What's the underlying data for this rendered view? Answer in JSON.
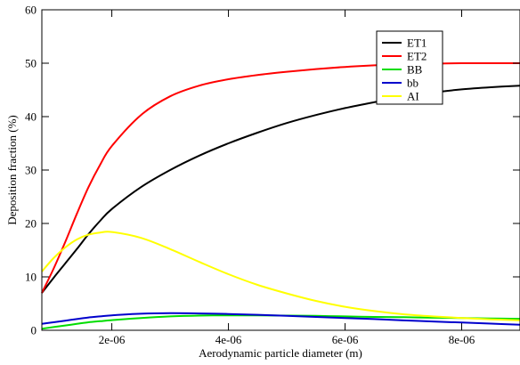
{
  "chart_data": {
    "type": "line",
    "title": "",
    "xlabel": "Aerodynamic particle diameter (m)",
    "ylabel": "Deposition fraction (%)",
    "xlim": [
      8e-07,
      9e-06
    ],
    "ylim": [
      0,
      60
    ],
    "xticks": [
      {
        "value": 2e-06,
        "label": "2e-06"
      },
      {
        "value": 4e-06,
        "label": "4e-06"
      },
      {
        "value": 6e-06,
        "label": "6e-06"
      },
      {
        "value": 8e-06,
        "label": "8e-06"
      }
    ],
    "yticks": [
      {
        "value": 0,
        "label": "0"
      },
      {
        "value": 10,
        "label": "10"
      },
      {
        "value": 20,
        "label": "20"
      },
      {
        "value": 30,
        "label": "30"
      },
      {
        "value": 40,
        "label": "40"
      },
      {
        "value": 50,
        "label": "50"
      },
      {
        "value": 60,
        "label": "60"
      }
    ],
    "grid": false,
    "legend_position": "top-right",
    "x": [
      8e-07,
      1e-06,
      1.2e-06,
      1.4e-06,
      1.6e-06,
      1.8e-06,
      2e-06,
      2.5e-06,
      3e-06,
      3.5e-06,
      4e-06,
      4.5e-06,
      5e-06,
      5.5e-06,
      6e-06,
      6.5e-06,
      7e-06,
      7.5e-06,
      8e-06,
      8.5e-06,
      9e-06
    ],
    "series": [
      {
        "name": "ET1",
        "color": "#000000",
        "values": [
          7,
          9.8,
          12.5,
          15.2,
          18.0,
          20.5,
          22.7,
          26.8,
          30.0,
          32.7,
          35.0,
          37.0,
          38.8,
          40.3,
          41.6,
          42.7,
          43.7,
          44.5,
          45.1,
          45.5,
          45.8
        ]
      },
      {
        "name": "ET2",
        "color": "#ff0000",
        "values": [
          7,
          11.5,
          16.5,
          21.8,
          26.8,
          31.0,
          34.5,
          40.3,
          43.8,
          45.8,
          47.0,
          47.8,
          48.4,
          48.9,
          49.3,
          49.6,
          49.8,
          49.9,
          50.0,
          50.0,
          50.0
        ]
      },
      {
        "name": "BB",
        "color": "#00dd00",
        "values": [
          0.3,
          0.6,
          0.9,
          1.2,
          1.5,
          1.7,
          1.9,
          2.3,
          2.6,
          2.75,
          2.8,
          2.8,
          2.75,
          2.7,
          2.6,
          2.5,
          2.45,
          2.35,
          2.3,
          2.2,
          2.15
        ]
      },
      {
        "name": "bb",
        "color": "#0000cc",
        "values": [
          1.2,
          1.5,
          1.8,
          2.1,
          2.4,
          2.6,
          2.8,
          3.1,
          3.2,
          3.15,
          3.05,
          2.9,
          2.7,
          2.5,
          2.3,
          2.1,
          1.85,
          1.65,
          1.45,
          1.25,
          1.05
        ]
      },
      {
        "name": "AI",
        "color": "#ffff00",
        "values": [
          11,
          13.5,
          15.5,
          17.0,
          17.9,
          18.3,
          18.4,
          17.3,
          15.2,
          12.8,
          10.5,
          8.5,
          6.9,
          5.5,
          4.4,
          3.6,
          3.0,
          2.6,
          2.3,
          2.05,
          1.85
        ]
      }
    ]
  }
}
